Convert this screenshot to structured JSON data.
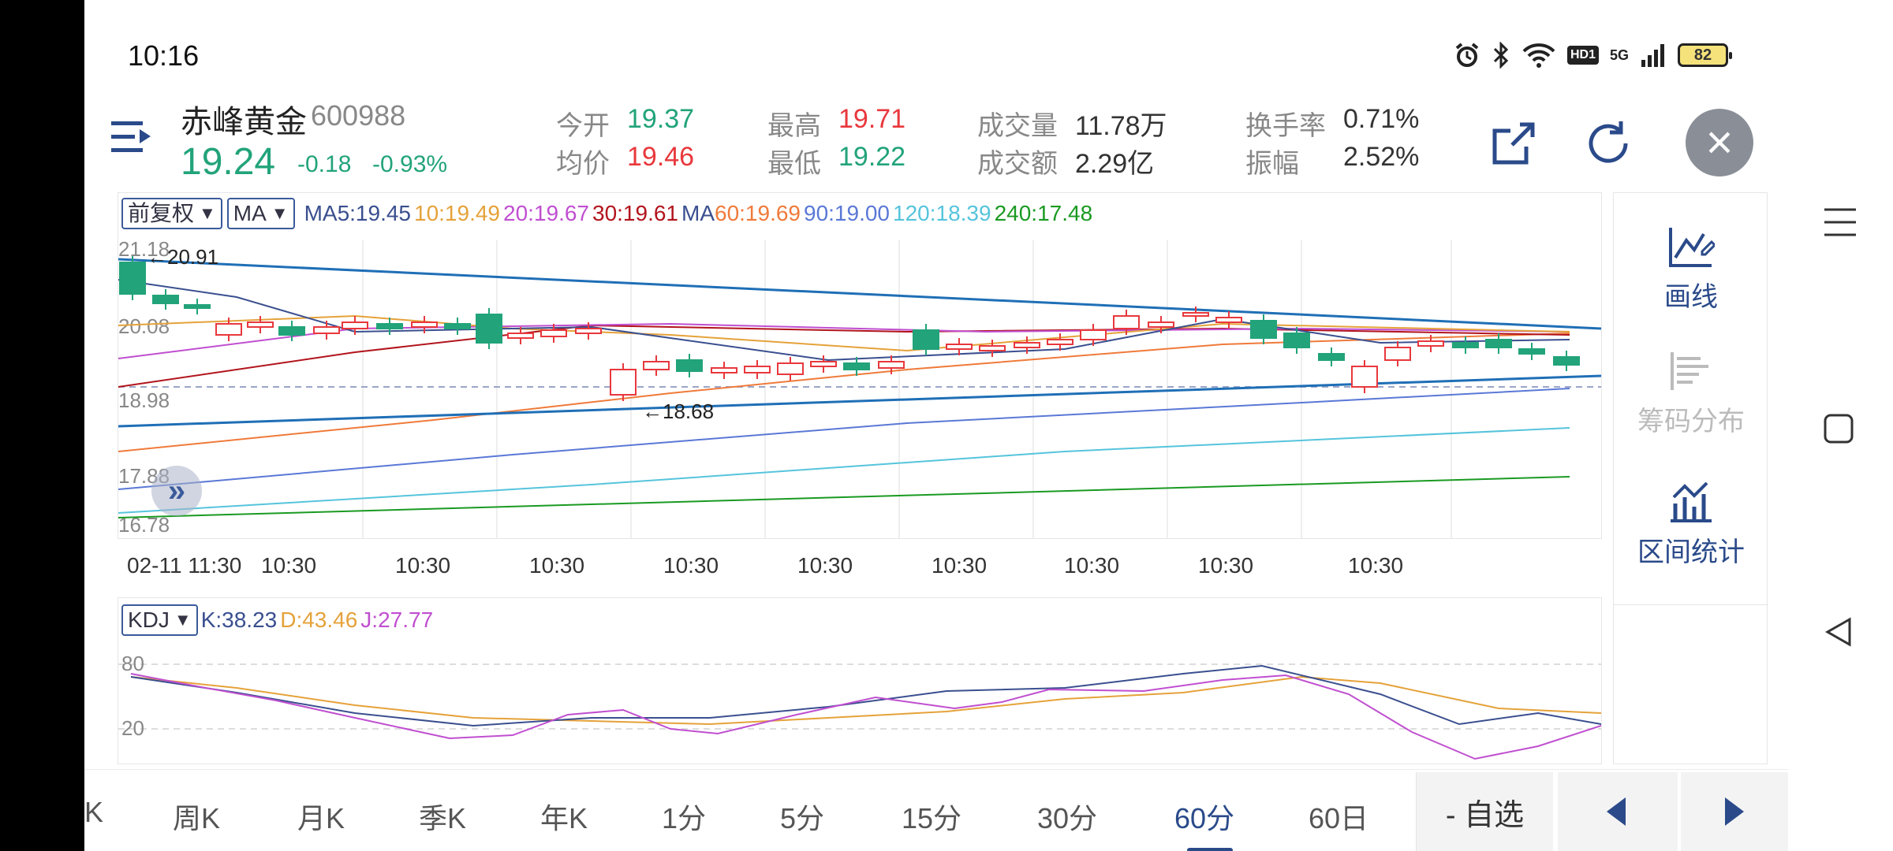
{
  "status": {
    "time": "10:16",
    "battery": "82",
    "signal_label": "5G",
    "hd_label": "HD1"
  },
  "header": {
    "name": "赤峰黄金",
    "code": "600988",
    "price": "19.24",
    "change": "-0.18",
    "change_pct": "-0.93%",
    "stats": {
      "open_label": "今开",
      "open_value": "19.37",
      "avg_label": "均价",
      "avg_value": "19.46",
      "high_label": "最高",
      "high_value": "19.71",
      "low_label": "最低",
      "low_value": "19.22",
      "volume_label": "成交量",
      "volume_value": "11.78万",
      "amount_label": "成交额",
      "amount_value": "2.29亿",
      "turnover_label": "换手率",
      "turnover_value": "0.71%",
      "amplitude_label": "振幅",
      "amplitude_value": "2.52%"
    }
  },
  "main_chart": {
    "adjust_select": "前复权",
    "indicator_select": "MA",
    "ma_legend": [
      {
        "text": "MA5:19.45",
        "color": "#3a4f8f"
      },
      {
        "text": "10:19.49",
        "color": "#e5a23a"
      },
      {
        "text": "20:19.67",
        "color": "#c04fd0"
      },
      {
        "text": "30:19.61",
        "color": "#b2141c"
      },
      {
        "text": "MA",
        "color": "#3a4f8f"
      },
      {
        "text": "60:19.69",
        "color": "#ef7a3a"
      },
      {
        "text": "90:19.00",
        "color": "#5a78d6"
      },
      {
        "text": "120:18.39",
        "color": "#56c4dc"
      },
      {
        "text": "240:17.48",
        "color": "#1a9a22"
      }
    ],
    "y_labels": [
      "21.18",
      "20.08",
      "18.98",
      "17.88",
      "16.78"
    ],
    "max_marker": "20.91",
    "min_marker": "18.68",
    "expand_icon": "double-chevron-right-icon"
  },
  "time_axis": [
    "02-11 11:30",
    "10:30",
    "10:30",
    "10:30",
    "10:30",
    "10:30",
    "10:30",
    "10:30",
    "10:30",
    "10:30"
  ],
  "kdj": {
    "select": "KDJ",
    "k_text": "K:38.23",
    "d_text": "D:43.46",
    "j_text": "J:27.77",
    "k_color": "#3a4f8f",
    "d_color": "#e5a23a",
    "j_color": "#c04fd0",
    "y_labels": [
      "80",
      "20"
    ]
  },
  "side_panel": {
    "draw_label": "画线",
    "chips_label": "筹码分布",
    "range_label": "区间统计"
  },
  "tabs": [
    {
      "label": "K",
      "active": false
    },
    {
      "label": "周K",
      "active": false
    },
    {
      "label": "月K",
      "active": false
    },
    {
      "label": "季K",
      "active": false
    },
    {
      "label": "年K",
      "active": false
    },
    {
      "label": "1分",
      "active": false
    },
    {
      "label": "5分",
      "active": false
    },
    {
      "label": "15分",
      "active": false
    },
    {
      "label": "30分",
      "active": false
    },
    {
      "label": "60分",
      "active": true
    },
    {
      "label": "60日",
      "active": false
    }
  ],
  "fav_button": "- 自选",
  "colors": {
    "up": "#e8383d",
    "down": "#22a37a",
    "accent": "#2a4a8a"
  }
}
